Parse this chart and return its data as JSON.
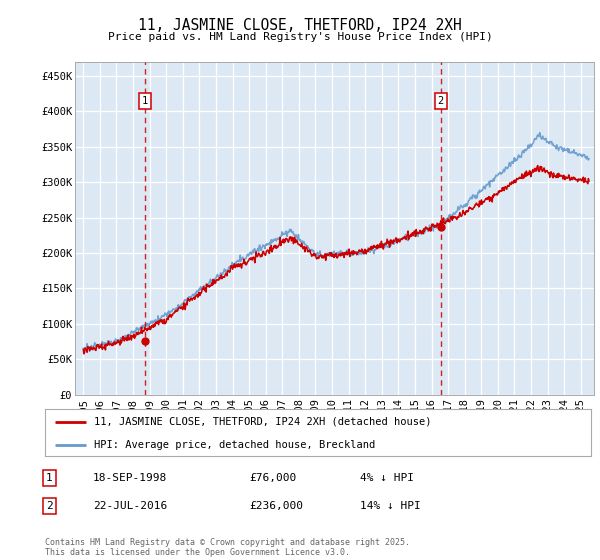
{
  "title": "11, JASMINE CLOSE, THETFORD, IP24 2XH",
  "subtitle": "Price paid vs. HM Land Registry's House Price Index (HPI)",
  "background_color": "#ffffff",
  "plot_bg_color": "#dce9f5",
  "ylabel_ticks": [
    "£0",
    "£50K",
    "£100K",
    "£150K",
    "£200K",
    "£250K",
    "£300K",
    "£350K",
    "£400K",
    "£450K"
  ],
  "ytick_values": [
    0,
    50000,
    100000,
    150000,
    200000,
    250000,
    300000,
    350000,
    400000,
    450000
  ],
  "ylim": [
    0,
    470000
  ],
  "xlim_start": 1994.5,
  "xlim_end": 2025.8,
  "marker1_x": 1998.72,
  "marker1_y": 76000,
  "marker1_label": "1",
  "marker1_date": "18-SEP-1998",
  "marker1_price": "£76,000",
  "marker1_hpi": "4% ↓ HPI",
  "marker2_x": 2016.55,
  "marker2_y": 236000,
  "marker2_label": "2",
  "marker2_date": "22-JUL-2016",
  "marker2_price": "£236,000",
  "marker2_hpi": "14% ↓ HPI",
  "legend_line1": "11, JASMINE CLOSE, THETFORD, IP24 2XH (detached house)",
  "legend_line2": "HPI: Average price, detached house, Breckland",
  "footer": "Contains HM Land Registry data © Crown copyright and database right 2025.\nThis data is licensed under the Open Government Licence v3.0.",
  "line_color_red": "#cc0000",
  "line_color_blue": "#6699cc",
  "marker_dot_color": "#cc0000",
  "xticks": [
    1995,
    1996,
    1997,
    1998,
    1999,
    2000,
    2001,
    2002,
    2003,
    2004,
    2005,
    2006,
    2007,
    2008,
    2009,
    2010,
    2011,
    2012,
    2013,
    2014,
    2015,
    2016,
    2017,
    2018,
    2019,
    2020,
    2021,
    2022,
    2023,
    2024,
    2025
  ]
}
